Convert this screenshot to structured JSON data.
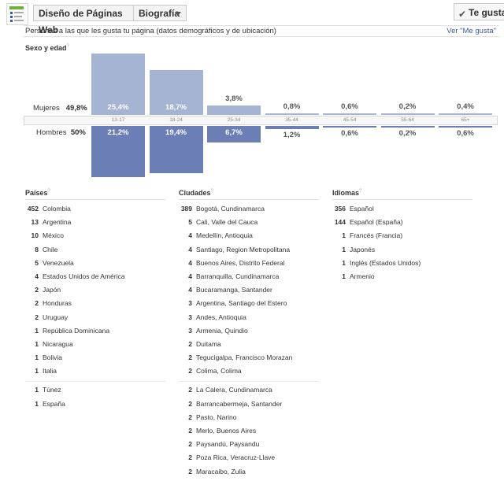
{
  "header": {
    "page_name": "Diseño de Páginas Web",
    "category": "Biografía",
    "like_button": "Te gusta"
  },
  "section": {
    "title": "Personas a las que les gusta tu página (datos demográficos y de ubicación)",
    "see_likes_link": "Ver \"Me gusta\""
  },
  "demographics": {
    "title": "Sexo y edad",
    "help_mark": "?",
    "women_label": "Mujeres",
    "women_total": "49,8%",
    "men_label": "Hombres",
    "men_total": "50%"
  },
  "chart_data": {
    "type": "bar",
    "title": "Sexo y edad",
    "categories": [
      "13-17",
      "18-24",
      "25-34",
      "35-44",
      "45-54",
      "55-64",
      "65+"
    ],
    "series": [
      {
        "name": "Mujeres",
        "values": [
          25.4,
          18.7,
          3.8,
          0.8,
          0.6,
          0.2,
          0.4
        ],
        "labels": [
          "25,4%",
          "18,7%",
          "3,8%",
          "0,8%",
          "0,6%",
          "0,2%",
          "0,4%"
        ]
      },
      {
        "name": "Hombres",
        "values": [
          21.2,
          19.4,
          6.7,
          1.2,
          0.6,
          0.2,
          0.6
        ],
        "labels": [
          "21,2%",
          "19,4%",
          "6,7%",
          "1,2%",
          "0,6%",
          "0,2%",
          "0,6%"
        ]
      }
    ],
    "colors": {
      "women": "#a6b4d3",
      "men": "#6b7eb5"
    }
  },
  "countries": {
    "title": "Países",
    "items": [
      {
        "count": "452",
        "name": "Colombia"
      },
      {
        "count": "13",
        "name": "Argentina"
      },
      {
        "count": "10",
        "name": "México"
      },
      {
        "count": "8",
        "name": "Chile"
      },
      {
        "count": "5",
        "name": "Venezuela"
      },
      {
        "count": "4",
        "name": "Estados Unidos de América"
      },
      {
        "count": "2",
        "name": "Japón"
      },
      {
        "count": "2",
        "name": "Honduras"
      },
      {
        "count": "2",
        "name": "Uruguay"
      },
      {
        "count": "1",
        "name": "República Dominicana"
      },
      {
        "count": "1",
        "name": "Nicaragua"
      },
      {
        "count": "1",
        "name": "Bolivia"
      },
      {
        "count": "1",
        "name": "Italia"
      }
    ],
    "more_items": [
      {
        "count": "1",
        "name": "Túnez"
      },
      {
        "count": "1",
        "name": "España"
      }
    ]
  },
  "cities": {
    "title": "Ciudades",
    "items": [
      {
        "count": "389",
        "name": "Bogotá, Cundinamarca"
      },
      {
        "count": "5",
        "name": "Cali, Valle del Cauca"
      },
      {
        "count": "4",
        "name": "Medellín, Antioquia"
      },
      {
        "count": "4",
        "name": "Santiago, Region Metropolitana"
      },
      {
        "count": "4",
        "name": "Buenos Aires, Distrito Federal"
      },
      {
        "count": "4",
        "name": "Barranquilla, Cundinamarca"
      },
      {
        "count": "4",
        "name": "Bucaramanga, Santander"
      },
      {
        "count": "3",
        "name": "Argentina, Santiago del Estero"
      },
      {
        "count": "3",
        "name": "Andes, Antioquia"
      },
      {
        "count": "3",
        "name": "Armenia, Quindio"
      },
      {
        "count": "2",
        "name": "Duitama"
      },
      {
        "count": "2",
        "name": "Tegucigalpa, Francisco Morazan"
      },
      {
        "count": "2",
        "name": "Colima, Colima"
      }
    ],
    "more_items": [
      {
        "count": "2",
        "name": "La Calera, Cundinamarca"
      },
      {
        "count": "2",
        "name": "Barrancabermeja, Santander"
      },
      {
        "count": "2",
        "name": "Pasto, Narino"
      },
      {
        "count": "2",
        "name": "Merlo, Buenos Aires"
      },
      {
        "count": "2",
        "name": "Paysandú, Paysandu"
      },
      {
        "count": "2",
        "name": "Poza Rica, Veracruz-Llave"
      },
      {
        "count": "2",
        "name": "Maracaibo, Zulia"
      }
    ]
  },
  "languages": {
    "title": "Idiomas",
    "items": [
      {
        "count": "356",
        "name": "Español"
      },
      {
        "count": "144",
        "name": "Español (España)"
      },
      {
        "count": "1",
        "name": "Francés (Francia)"
      },
      {
        "count": "1",
        "name": "Japonés"
      },
      {
        "count": "1",
        "name": "Inglés (Estados Unidos)"
      },
      {
        "count": "1",
        "name": "Armenio"
      }
    ]
  }
}
